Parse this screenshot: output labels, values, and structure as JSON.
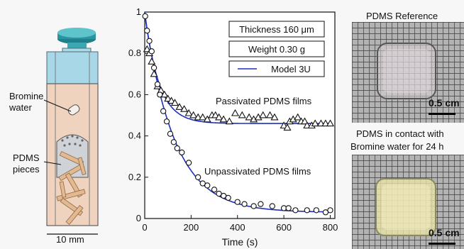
{
  "colors": {
    "model": "#1f2fbf",
    "box_fill": "#f2d7c4",
    "cap": "#2a8f9a",
    "water": "#aad9e8"
  },
  "schematic": {
    "label_bromine": "Bromine\nwater",
    "label_pdms": "PDMS\npieces",
    "scale_label": "10 mm"
  },
  "chart_data": {
    "type": "scatter",
    "title": "",
    "xlabel": "Time (s)",
    "ylabel": "",
    "xlim": [
      0,
      820
    ],
    "ylim": [
      0,
      1.0
    ],
    "xticks": [
      0,
      200,
      400,
      600,
      800
    ],
    "yticks": [
      0,
      0.2,
      0.4,
      0.6,
      0.8,
      1
    ],
    "ytick_labels": [
      "0",
      "0.2",
      "0.4",
      "0.6",
      "0.8",
      "1"
    ],
    "grid": false,
    "legend_box": [
      "Thickness 160 μm",
      "Weight  0.30 g"
    ],
    "legend_line_label": "Model 3U",
    "series": [
      {
        "name": "Passivated PDMS films",
        "marker": "triangle",
        "points": [
          [
            10,
            0.82
          ],
          [
            20,
            0.8
          ],
          [
            30,
            0.76
          ],
          [
            40,
            0.7
          ],
          [
            55,
            0.64
          ],
          [
            70,
            0.62
          ],
          [
            85,
            0.6
          ],
          [
            100,
            0.58
          ],
          [
            115,
            0.57
          ],
          [
            130,
            0.56
          ],
          [
            150,
            0.54
          ],
          [
            170,
            0.53
          ],
          [
            190,
            0.51
          ],
          [
            210,
            0.5
          ],
          [
            230,
            0.49
          ],
          [
            250,
            0.49
          ],
          [
            270,
            0.48
          ],
          [
            290,
            0.5
          ],
          [
            305,
            0.5
          ],
          [
            320,
            0.49
          ],
          [
            340,
            0.48
          ],
          [
            365,
            0.47
          ],
          [
            390,
            0.51
          ],
          [
            420,
            0.5
          ],
          [
            450,
            0.49
          ],
          [
            470,
            0.48
          ],
          [
            490,
            0.49
          ],
          [
            510,
            0.5
          ],
          [
            540,
            0.5
          ],
          [
            560,
            0.49
          ],
          [
            600,
            0.45
          ],
          [
            615,
            0.44
          ],
          [
            625,
            0.47
          ],
          [
            640,
            0.48
          ],
          [
            660,
            0.49
          ],
          [
            675,
            0.47
          ],
          [
            690,
            0.47
          ],
          [
            700,
            0.45
          ],
          [
            720,
            0.45
          ],
          [
            735,
            0.46
          ],
          [
            760,
            0.46
          ],
          [
            780,
            0.46
          ],
          [
            800,
            0.46
          ]
        ]
      },
      {
        "name": "Unpassivated PDMS films",
        "marker": "circle",
        "points": [
          [
            2,
            0.98
          ],
          [
            10,
            0.91
          ],
          [
            20,
            0.86
          ],
          [
            30,
            0.81
          ],
          [
            40,
            0.73
          ],
          [
            55,
            0.65
          ],
          [
            65,
            0.6
          ],
          [
            80,
            0.52
          ],
          [
            95,
            0.47
          ],
          [
            110,
            0.41
          ],
          [
            125,
            0.37
          ],
          [
            140,
            0.34
          ],
          [
            160,
            0.32
          ],
          [
            190,
            0.27
          ],
          [
            230,
            0.2
          ],
          [
            250,
            0.17
          ],
          [
            270,
            0.16
          ],
          [
            300,
            0.14
          ],
          [
            320,
            0.12
          ],
          [
            340,
            0.11
          ],
          [
            360,
            0.1
          ],
          [
            400,
            0.08
          ],
          [
            430,
            0.07
          ],
          [
            470,
            0.06
          ],
          [
            500,
            0.07
          ],
          [
            550,
            0.06
          ],
          [
            600,
            0.05
          ],
          [
            620,
            0.05
          ],
          [
            650,
            0.04
          ],
          [
            700,
            0.04
          ],
          [
            740,
            0.04
          ],
          [
            780,
            0.03
          ],
          [
            800,
            0.04
          ]
        ]
      }
    ],
    "model_curves": [
      {
        "a": 0.46,
        "b": 0.54,
        "k": 0.0165
      },
      {
        "a": 0.03,
        "b": 0.96,
        "k": 0.0078
      }
    ],
    "annotations": [
      "Passivated PDMS films",
      "Unpassivated PDMS films"
    ]
  },
  "photos": {
    "top_title": "PDMS Reference",
    "bottom_title_line1": "PDMS in contact with",
    "bottom_title_line2": "Bromine water for 24 h",
    "scale_label": "0.5 cm"
  }
}
